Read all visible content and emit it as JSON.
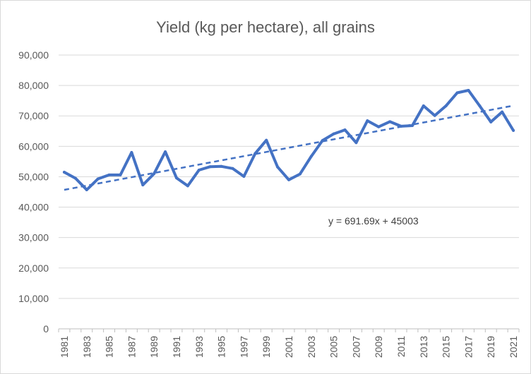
{
  "chart_data": {
    "type": "line",
    "title": "Yield (kg per hectare), all grains",
    "xlabel": "",
    "ylabel": "",
    "x": [
      1981,
      1982,
      1983,
      1984,
      1985,
      1986,
      1987,
      1988,
      1989,
      1990,
      1991,
      1992,
      1993,
      1994,
      1995,
      1996,
      1997,
      1998,
      1999,
      2000,
      2001,
      2002,
      2003,
      2004,
      2005,
      2006,
      2007,
      2008,
      2009,
      2010,
      2011,
      2012,
      2013,
      2014,
      2015,
      2016,
      2017,
      2018,
      2019,
      2020,
      2021
    ],
    "x_tick_labels": [
      "1981",
      "1983",
      "1985",
      "1987",
      "1989",
      "1991",
      "1993",
      "1995",
      "1997",
      "1999",
      "2001",
      "2003",
      "2005",
      "2007",
      "2009",
      "2011",
      "2013",
      "2015",
      "2017",
      "2019",
      "2021"
    ],
    "ylim": [
      0,
      90000
    ],
    "y_tick_labels": [
      "0",
      "10,000",
      "20,000",
      "30,000",
      "40,000",
      "50,000",
      "60,000",
      "70,000",
      "80,000",
      "90,000"
    ],
    "grid": true,
    "legend": "none",
    "series": [
      {
        "values": [
          51500,
          49500,
          45700,
          49300,
          50600,
          50600,
          58000,
          47300,
          51000,
          58200,
          49600,
          47000,
          52200,
          53300,
          53400,
          52700,
          50100,
          57600,
          62000,
          53200,
          49000,
          50900,
          56700,
          61900,
          64100,
          65400,
          61200,
          68400,
          66400,
          68100,
          66600,
          66800,
          73300,
          70100,
          73300,
          77600,
          78400,
          73300,
          68000,
          71300,
          65200
        ],
        "color": "#4472c4"
      }
    ],
    "trendline": {
      "type": "linear",
      "slope": 691.69,
      "intercept": 45003,
      "equation_label": "y = 691.69x + 45003",
      "color": "#4472c4",
      "style": "dashed"
    }
  }
}
